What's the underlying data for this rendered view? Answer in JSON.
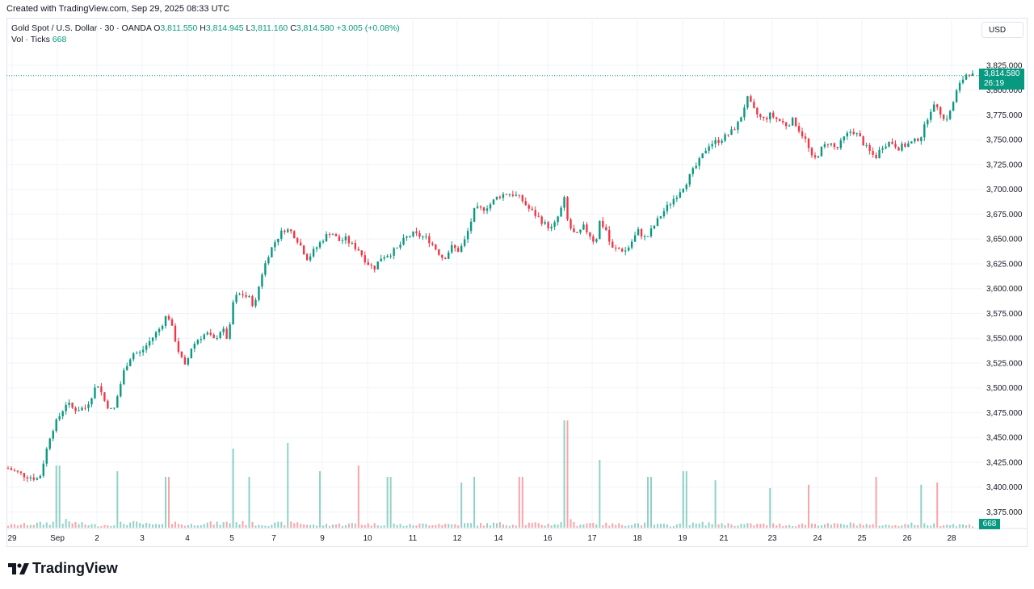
{
  "caption": "Created with TradingView.com, Sep 29, 2025 08:33 UTC",
  "legend": {
    "symbol": "Gold Spot / U.S. Dollar · 30 · OANDA",
    "o_label": "O",
    "o_value": "3,811.550",
    "h_label": "H",
    "h_value": "3,814.945",
    "l_label": "L",
    "l_value": "3,811.160",
    "c_label": "C",
    "c_value": "3,814.580",
    "change": "+3.005 (+0.08%)",
    "vol_label": "Vol · Ticks",
    "vol_value": "668"
  },
  "currency_button": "USD",
  "last_price_label": "3,814.580",
  "countdown_label": "26:19",
  "volume_label": "668",
  "logo_text": "TradingView",
  "colors": {
    "up": "#089981",
    "down": "#f23645",
    "grid": "#f0f3fa",
    "text": "#131722"
  },
  "chart_data": {
    "type": "candlestick",
    "y_ticks": [
      "3,825.000",
      "3,800.000",
      "3,775.000",
      "3,750.000",
      "3,725.000",
      "3,700.000",
      "3,675.000",
      "3,650.000",
      "3,625.000",
      "3,600.000",
      "3,575.000",
      "3,550.000",
      "3,525.000",
      "3,500.000",
      "3,475.000",
      "3,450.000",
      "3,425.000",
      "3,400.000",
      "3,375.000"
    ],
    "ylim": [
      3364,
      3829
    ],
    "x_ticks": [
      "29",
      "Sep",
      "2",
      "3",
      "4",
      "5",
      "7",
      "9",
      "10",
      "11",
      "12",
      "14",
      "16",
      "17",
      "18",
      "19",
      "21",
      "23",
      "24",
      "25",
      "26",
      "28"
    ],
    "last_price": 3814.58,
    "close_path": [
      [
        0,
        3419
      ],
      [
        2,
        3412
      ],
      [
        4,
        3408
      ],
      [
        5.5,
        3455
      ],
      [
        6.5,
        3470
      ],
      [
        7.5,
        3485
      ],
      [
        8.5,
        3478
      ],
      [
        10,
        3480
      ],
      [
        11.5,
        3505
      ],
      [
        12.5,
        3485
      ],
      [
        13.5,
        3475
      ],
      [
        14,
        3490
      ],
      [
        15,
        3520
      ],
      [
        16,
        3535
      ],
      [
        17,
        3535
      ],
      [
        18,
        3545
      ],
      [
        19.5,
        3560
      ],
      [
        20.5,
        3575
      ],
      [
        21,
        3562
      ],
      [
        22,
        3535
      ],
      [
        22.8,
        3520
      ],
      [
        23.5,
        3540
      ],
      [
        24.5,
        3550
      ],
      [
        25.5,
        3555
      ],
      [
        26.5,
        3548
      ],
      [
        27.5,
        3560
      ],
      [
        28.3,
        3548
      ],
      [
        29,
        3590
      ],
      [
        30,
        3595
      ],
      [
        31,
        3590
      ],
      [
        31.7,
        3582
      ],
      [
        32.5,
        3612
      ],
      [
        33.5,
        3635
      ],
      [
        34.5,
        3650
      ],
      [
        35.5,
        3660
      ],
      [
        36.3,
        3658
      ],
      [
        37,
        3652
      ],
      [
        37.7,
        3642
      ],
      [
        38.5,
        3630
      ],
      [
        39.5,
        3640
      ],
      [
        40.5,
        3650
      ],
      [
        41.5,
        3658
      ],
      [
        42.5,
        3648
      ],
      [
        43.5,
        3650
      ],
      [
        44,
        3645
      ],
      [
        45,
        3640
      ],
      [
        46,
        3628
      ],
      [
        47,
        3620
      ],
      [
        48,
        3632
      ],
      [
        49,
        3635
      ],
      [
        50,
        3640
      ],
      [
        51,
        3650
      ],
      [
        52,
        3655
      ],
      [
        53,
        3653
      ],
      [
        54,
        3650
      ],
      [
        55,
        3640
      ],
      [
        56,
        3630
      ],
      [
        57,
        3642
      ],
      [
        58,
        3638
      ],
      [
        58.8,
        3650
      ],
      [
        60,
        3680
      ],
      [
        61,
        3680
      ],
      [
        62,
        3685
      ],
      [
        63,
        3693
      ],
      [
        64,
        3696
      ],
      [
        65,
        3695
      ],
      [
        66,
        3690
      ],
      [
        67,
        3680
      ],
      [
        68,
        3673
      ],
      [
        69,
        3665
      ],
      [
        70,
        3660
      ],
      [
        71,
        3678
      ],
      [
        71.5,
        3690
      ],
      [
        72,
        3665
      ],
      [
        73,
        3652
      ],
      [
        74,
        3662
      ],
      [
        75,
        3652
      ],
      [
        75.5,
        3645
      ],
      [
        76,
        3668
      ],
      [
        77,
        3658
      ],
      [
        77.5,
        3640
      ],
      [
        78.5,
        3640
      ],
      [
        79.5,
        3638
      ],
      [
        80,
        3645
      ],
      [
        81,
        3658
      ],
      [
        82,
        3650
      ],
      [
        82.8,
        3660
      ],
      [
        84,
        3675
      ],
      [
        85,
        3685
      ],
      [
        86,
        3695
      ],
      [
        87,
        3705
      ],
      [
        88,
        3718
      ],
      [
        89,
        3730
      ],
      [
        90,
        3745
      ],
      [
        91,
        3748
      ],
      [
        92,
        3752
      ],
      [
        93,
        3758
      ],
      [
        94,
        3768
      ],
      [
        95,
        3792
      ],
      [
        96,
        3778
      ],
      [
        97,
        3770
      ],
      [
        98,
        3775
      ],
      [
        99,
        3770
      ],
      [
        100,
        3765
      ],
      [
        101,
        3770
      ],
      [
        101.7,
        3760
      ],
      [
        102.5,
        3750
      ],
      [
        103.5,
        3728
      ],
      [
        104.5,
        3740
      ],
      [
        105.5,
        3748
      ],
      [
        106.5,
        3740
      ],
      [
        107.5,
        3752
      ],
      [
        108.5,
        3760
      ],
      [
        109.5,
        3752
      ],
      [
        110.5,
        3740
      ],
      [
        111.5,
        3732
      ],
      [
        112.5,
        3745
      ],
      [
        113.5,
        3748
      ],
      [
        114.5,
        3742
      ],
      [
        115.5,
        3745
      ],
      [
        116.5,
        3748
      ],
      [
        117.5,
        3755
      ],
      [
        118.5,
        3780
      ],
      [
        119.5,
        3785
      ],
      [
        120.3,
        3770
      ],
      [
        121,
        3775
      ],
      [
        122,
        3800
      ],
      [
        123,
        3815
      ],
      [
        123.5,
        3818
      ],
      [
        124,
        3814.58
      ]
    ],
    "volume_profile": [
      [
        0,
        3
      ],
      [
        2,
        4
      ],
      [
        4,
        5
      ],
      [
        5.5,
        6
      ],
      [
        7,
        8
      ],
      [
        10,
        4
      ],
      [
        12,
        3
      ],
      [
        14,
        5
      ],
      [
        16,
        6
      ],
      [
        18,
        4
      ],
      [
        20,
        3
      ],
      [
        21.5,
        6
      ],
      [
        23,
        3
      ],
      [
        25,
        6
      ],
      [
        27,
        5
      ],
      [
        29,
        7
      ],
      [
        31,
        5
      ],
      [
        33,
        4
      ],
      [
        35,
        5
      ],
      [
        37,
        7
      ],
      [
        39,
        3
      ],
      [
        41,
        4
      ],
      [
        43,
        4
      ],
      [
        45,
        5
      ],
      [
        47,
        4
      ],
      [
        49,
        5
      ],
      [
        51,
        3
      ],
      [
        53,
        4
      ],
      [
        55,
        5
      ],
      [
        57,
        4
      ],
      [
        59,
        5
      ],
      [
        61,
        4
      ],
      [
        63,
        5
      ],
      [
        65,
        4
      ],
      [
        67,
        5
      ],
      [
        69,
        4
      ],
      [
        71,
        5
      ],
      [
        72,
        9
      ],
      [
        73,
        4
      ],
      [
        75,
        6
      ],
      [
        77,
        4
      ],
      [
        79,
        4
      ],
      [
        81,
        5
      ],
      [
        83,
        4
      ],
      [
        85,
        3
      ],
      [
        87,
        4
      ],
      [
        89,
        5
      ],
      [
        91,
        6
      ],
      [
        93,
        4
      ],
      [
        95,
        4
      ],
      [
        97,
        4
      ],
      [
        99,
        4
      ],
      [
        101,
        3
      ],
      [
        103,
        5
      ],
      [
        105,
        4
      ],
      [
        107,
        4
      ],
      [
        109,
        5
      ],
      [
        111,
        3
      ],
      [
        113,
        3
      ],
      [
        115,
        4
      ],
      [
        117,
        5
      ],
      [
        119,
        4
      ],
      [
        121,
        4
      ],
      [
        124,
        3
      ]
    ],
    "volume_spikes": [
      [
        6.5,
        0.55
      ],
      [
        14,
        0.5
      ],
      [
        20.5,
        0.45
      ],
      [
        29,
        0.7
      ],
      [
        31,
        0.45
      ],
      [
        36,
        0.75
      ],
      [
        40,
        0.5
      ],
      [
        45,
        0.55
      ],
      [
        49,
        0.45
      ],
      [
        58.3,
        0.4
      ],
      [
        60,
        0.45
      ],
      [
        66,
        0.45
      ],
      [
        71.7,
        0.95
      ],
      [
        76,
        0.6
      ],
      [
        82.5,
        0.45
      ],
      [
        87,
        0.5
      ],
      [
        91,
        0.42
      ],
      [
        98,
        0.35
      ],
      [
        103,
        0.38
      ],
      [
        111.5,
        0.45
      ],
      [
        117.3,
        0.38
      ],
      [
        119.5,
        0.4
      ]
    ]
  }
}
